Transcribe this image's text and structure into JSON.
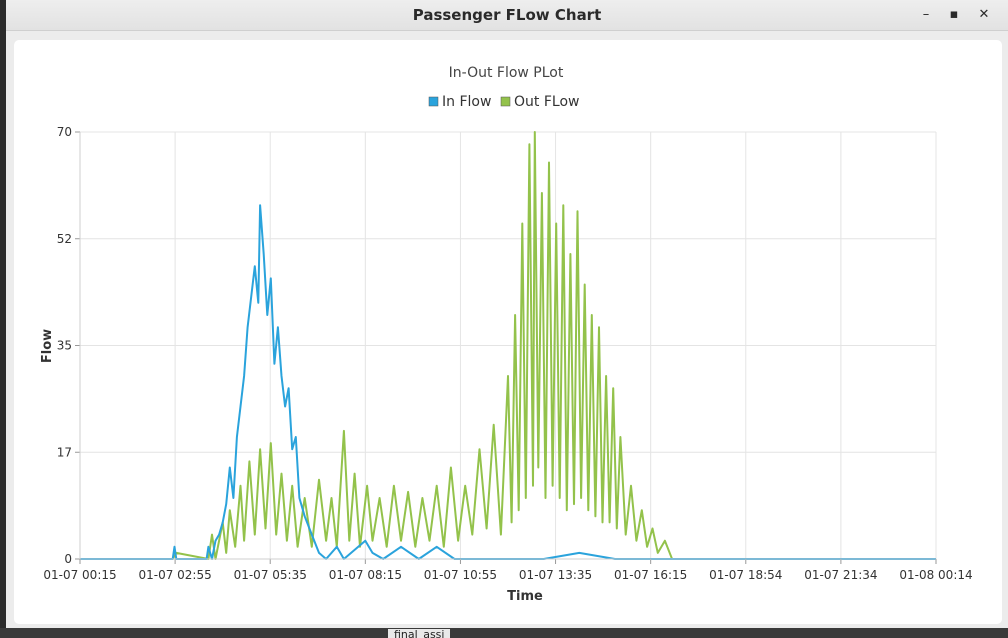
{
  "window": {
    "title": "Passenger FLow Chart",
    "minimize_label": "–",
    "maximize_label": "▪",
    "close_label": "✕"
  },
  "taskbar": {
    "fragment": "final_assi"
  },
  "colors": {
    "in_flow": "#2aa3dc",
    "out_flow": "#93c24b",
    "grid": "#e4e4e4",
    "axis": "#cfcfcf"
  },
  "chart_data": {
    "type": "line",
    "title": "In-Out Flow PLot",
    "xlabel": "Time",
    "ylabel": "Flow",
    "ylim": [
      0,
      70
    ],
    "yticks": [
      "0",
      "17",
      "35",
      "52",
      "70"
    ],
    "ytick_values": [
      0,
      17.5,
      35,
      52.5,
      70
    ],
    "xticks": [
      "01-07 00:15",
      "01-07 02:55",
      "01-07 05:35",
      "01-07 08:15",
      "01-07 10:55",
      "01-07 13:35",
      "01-07 16:15",
      "01-07 18:54",
      "01-07 21:34",
      "01-08 00:14"
    ],
    "x_range_hours": [
      0,
      24
    ],
    "grid": true,
    "legend_placement": "top-center",
    "series": [
      {
        "name": "In Flow",
        "points": [
          [
            0,
            0
          ],
          [
            2.6,
            0
          ],
          [
            2.65,
            2
          ],
          [
            2.7,
            0
          ],
          [
            3.5,
            0
          ],
          [
            3.55,
            0
          ],
          [
            3.6,
            2
          ],
          [
            3.7,
            0
          ],
          [
            3.8,
            3
          ],
          [
            3.9,
            4
          ],
          [
            4.0,
            6
          ],
          [
            4.1,
            9
          ],
          [
            4.2,
            15
          ],
          [
            4.3,
            10
          ],
          [
            4.4,
            20
          ],
          [
            4.5,
            25
          ],
          [
            4.6,
            30
          ],
          [
            4.7,
            38
          ],
          [
            4.8,
            43
          ],
          [
            4.9,
            48
          ],
          [
            5.0,
            42
          ],
          [
            5.05,
            58
          ],
          [
            5.15,
            50
          ],
          [
            5.25,
            40
          ],
          [
            5.35,
            46
          ],
          [
            5.45,
            32
          ],
          [
            5.55,
            38
          ],
          [
            5.65,
            30
          ],
          [
            5.75,
            25
          ],
          [
            5.85,
            28
          ],
          [
            5.95,
            18
          ],
          [
            6.05,
            20
          ],
          [
            6.15,
            10
          ],
          [
            6.3,
            7
          ],
          [
            6.5,
            4
          ],
          [
            6.7,
            1
          ],
          [
            6.9,
            0
          ],
          [
            7.2,
            2
          ],
          [
            7.4,
            0
          ],
          [
            8.0,
            3
          ],
          [
            8.2,
            1
          ],
          [
            8.5,
            0
          ],
          [
            9.0,
            2
          ],
          [
            9.5,
            0
          ],
          [
            10.0,
            2
          ],
          [
            10.5,
            0
          ],
          [
            12.0,
            0
          ],
          [
            13.0,
            0
          ],
          [
            14.0,
            1
          ],
          [
            15.0,
            0
          ],
          [
            16.0,
            0
          ],
          [
            19.5,
            0
          ],
          [
            20.0,
            0
          ],
          [
            21.0,
            0
          ],
          [
            22.0,
            0
          ],
          [
            24.0,
            0
          ]
        ]
      },
      {
        "name": "Out FLow",
        "points": [
          [
            0,
            0
          ],
          [
            2.6,
            0
          ],
          [
            2.7,
            1
          ],
          [
            3.6,
            0
          ],
          [
            3.7,
            4
          ],
          [
            3.8,
            0
          ],
          [
            4.0,
            6
          ],
          [
            4.1,
            1
          ],
          [
            4.2,
            8
          ],
          [
            4.35,
            2
          ],
          [
            4.5,
            12
          ],
          [
            4.6,
            3
          ],
          [
            4.75,
            16
          ],
          [
            4.9,
            4
          ],
          [
            5.05,
            18
          ],
          [
            5.2,
            5
          ],
          [
            5.35,
            19
          ],
          [
            5.5,
            4
          ],
          [
            5.65,
            14
          ],
          [
            5.8,
            3
          ],
          [
            5.95,
            12
          ],
          [
            6.1,
            2
          ],
          [
            6.3,
            10
          ],
          [
            6.5,
            2
          ],
          [
            6.7,
            13
          ],
          [
            6.9,
            3
          ],
          [
            7.05,
            10
          ],
          [
            7.2,
            2
          ],
          [
            7.4,
            21
          ],
          [
            7.55,
            3
          ],
          [
            7.7,
            14
          ],
          [
            7.85,
            2
          ],
          [
            8.05,
            12
          ],
          [
            8.2,
            3
          ],
          [
            8.4,
            10
          ],
          [
            8.6,
            2
          ],
          [
            8.8,
            12
          ],
          [
            9.0,
            3
          ],
          [
            9.2,
            11
          ],
          [
            9.4,
            2
          ],
          [
            9.6,
            10
          ],
          [
            9.8,
            3
          ],
          [
            10.0,
            12
          ],
          [
            10.2,
            2
          ],
          [
            10.4,
            15
          ],
          [
            10.6,
            3
          ],
          [
            10.8,
            12
          ],
          [
            11.0,
            4
          ],
          [
            11.2,
            18
          ],
          [
            11.4,
            5
          ],
          [
            11.6,
            22
          ],
          [
            11.8,
            4
          ],
          [
            12.0,
            30
          ],
          [
            12.1,
            6
          ],
          [
            12.2,
            40
          ],
          [
            12.3,
            8
          ],
          [
            12.4,
            55
          ],
          [
            12.5,
            10
          ],
          [
            12.6,
            68
          ],
          [
            12.7,
            12
          ],
          [
            12.75,
            70
          ],
          [
            12.85,
            15
          ],
          [
            12.95,
            60
          ],
          [
            13.05,
            10
          ],
          [
            13.15,
            65
          ],
          [
            13.25,
            12
          ],
          [
            13.35,
            55
          ],
          [
            13.45,
            10
          ],
          [
            13.55,
            58
          ],
          [
            13.65,
            8
          ],
          [
            13.75,
            50
          ],
          [
            13.85,
            9
          ],
          [
            13.95,
            57
          ],
          [
            14.05,
            10
          ],
          [
            14.15,
            45
          ],
          [
            14.25,
            8
          ],
          [
            14.35,
            40
          ],
          [
            14.45,
            7
          ],
          [
            14.55,
            38
          ],
          [
            14.65,
            6
          ],
          [
            14.75,
            30
          ],
          [
            14.85,
            6
          ],
          [
            14.95,
            28
          ],
          [
            15.05,
            5
          ],
          [
            15.15,
            20
          ],
          [
            15.3,
            4
          ],
          [
            15.45,
            12
          ],
          [
            15.6,
            3
          ],
          [
            15.75,
            8
          ],
          [
            15.9,
            2
          ],
          [
            16.05,
            5
          ],
          [
            16.2,
            1
          ],
          [
            16.4,
            3
          ],
          [
            16.6,
            0
          ],
          [
            24.0,
            0
          ]
        ]
      }
    ]
  }
}
